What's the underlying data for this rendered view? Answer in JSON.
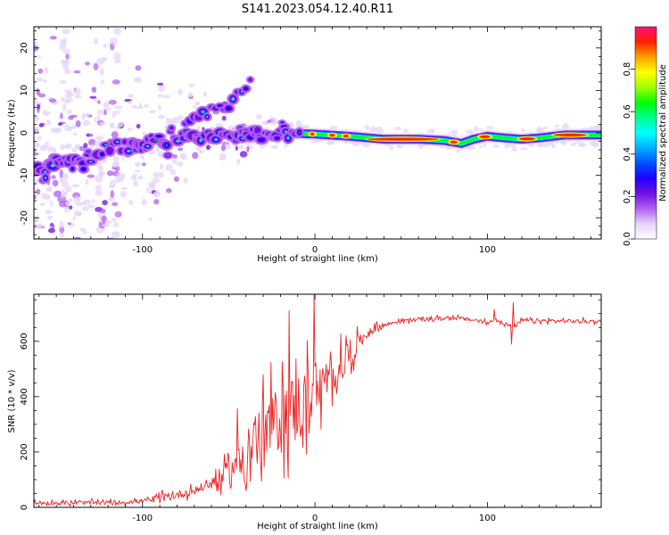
{
  "figure": {
    "title": "S141.2023.054.12.40.R11"
  },
  "chart_data": [
    {
      "type": "heatmap",
      "xlabel": "Height of straight line (km)",
      "ylabel": "Frequency (Hz)",
      "xlim": [
        -163,
        166
      ],
      "ylim": [
        -25,
        25
      ],
      "xticks": [
        -100,
        0,
        100
      ],
      "yticks": [
        -20,
        -10,
        0,
        10,
        20
      ],
      "colorbar": {
        "label": "Normalized spectral amplitude",
        "range": [
          0.0,
          1.0
        ],
        "ticks": [
          0.0,
          0.2,
          0.4,
          0.6,
          0.8
        ],
        "colors": [
          "#ffffff",
          "#e6d4f8",
          "#b060f0",
          "#7010e0",
          "#2000ff",
          "#0050ff",
          "#00b0ff",
          "#00ffff",
          "#00ff90",
          "#00ff00",
          "#a0ff00",
          "#ffff00",
          "#ffa000",
          "#ff2000",
          "#ff1080"
        ]
      },
      "ridge": [
        {
          "x": -163,
          "freq": -8.0
        },
        {
          "x": -140,
          "freq": -7.0
        },
        {
          "x": -120,
          "freq": -3.5
        },
        {
          "x": -100,
          "freq": -2.5
        },
        {
          "x": -80,
          "freq": -1.0
        },
        {
          "x": -60,
          "freq": -0.5
        },
        {
          "x": -40,
          "freq": -0.5
        },
        {
          "x": -20,
          "freq": 0.0
        },
        {
          "x": 0,
          "freq": -0.3
        },
        {
          "x": 20,
          "freq": -0.8
        },
        {
          "x": 40,
          "freq": -1.5
        },
        {
          "x": 60,
          "freq": -1.5
        },
        {
          "x": 75,
          "freq": -1.8
        },
        {
          "x": 85,
          "freq": -2.5
        },
        {
          "x": 92,
          "freq": -1.5
        },
        {
          "x": 100,
          "freq": -0.8
        },
        {
          "x": 110,
          "freq": -1.2
        },
        {
          "x": 120,
          "freq": -1.5
        },
        {
          "x": 130,
          "freq": -1.2
        },
        {
          "x": 145,
          "freq": -0.5
        },
        {
          "x": 166,
          "freq": -0.5
        }
      ],
      "branch": [
        {
          "x": -75,
          "freq": 3.0
        },
        {
          "x": -60,
          "freq": 5.0
        },
        {
          "x": -50,
          "freq": 7.0
        },
        {
          "x": -42,
          "freq": 10.0
        },
        {
          "x": -37,
          "freq": 13.5
        }
      ],
      "streaks": [
        {
          "x": -125,
          "from": -24,
          "to": 24
        },
        {
          "x": -116,
          "from": -24,
          "to": 24
        },
        {
          "x": -145,
          "from": -24,
          "to": 22
        }
      ]
    },
    {
      "type": "line",
      "xlabel": "Height of straight line (km)",
      "ylabel": "SNR (10 * v/v)",
      "xlim": [
        -163,
        166
      ],
      "ylim": [
        0,
        770
      ],
      "xticks": [
        -100,
        0,
        100
      ],
      "yticks": [
        0,
        200,
        400,
        600
      ],
      "color": "#ee2222",
      "trend": [
        {
          "x": -163,
          "y": 15
        },
        {
          "x": -110,
          "y": 18
        },
        {
          "x": -90,
          "y": 30
        },
        {
          "x": -70,
          "y": 60
        },
        {
          "x": -55,
          "y": 100
        },
        {
          "x": -45,
          "y": 160
        },
        {
          "x": -35,
          "y": 230
        },
        {
          "x": -25,
          "y": 300
        },
        {
          "x": -15,
          "y": 340
        },
        {
          "x": -5,
          "y": 380
        },
        {
          "x": 5,
          "y": 430
        },
        {
          "x": 15,
          "y": 510
        },
        {
          "x": 25,
          "y": 600
        },
        {
          "x": 35,
          "y": 650
        },
        {
          "x": 50,
          "y": 675
        },
        {
          "x": 80,
          "y": 685
        },
        {
          "x": 95,
          "y": 675
        },
        {
          "x": 100,
          "y": 665
        },
        {
          "x": 105,
          "y": 680
        },
        {
          "x": 115,
          "y": 650
        },
        {
          "x": 120,
          "y": 675
        },
        {
          "x": 166,
          "y": 672
        }
      ],
      "spikes": [
        {
          "x": -0.5,
          "y": 770
        },
        {
          "x": -15,
          "y": 710
        },
        {
          "x": 114,
          "y": 590
        },
        {
          "x": 115,
          "y": 740
        },
        {
          "x": 104,
          "y": 715
        }
      ]
    }
  ]
}
